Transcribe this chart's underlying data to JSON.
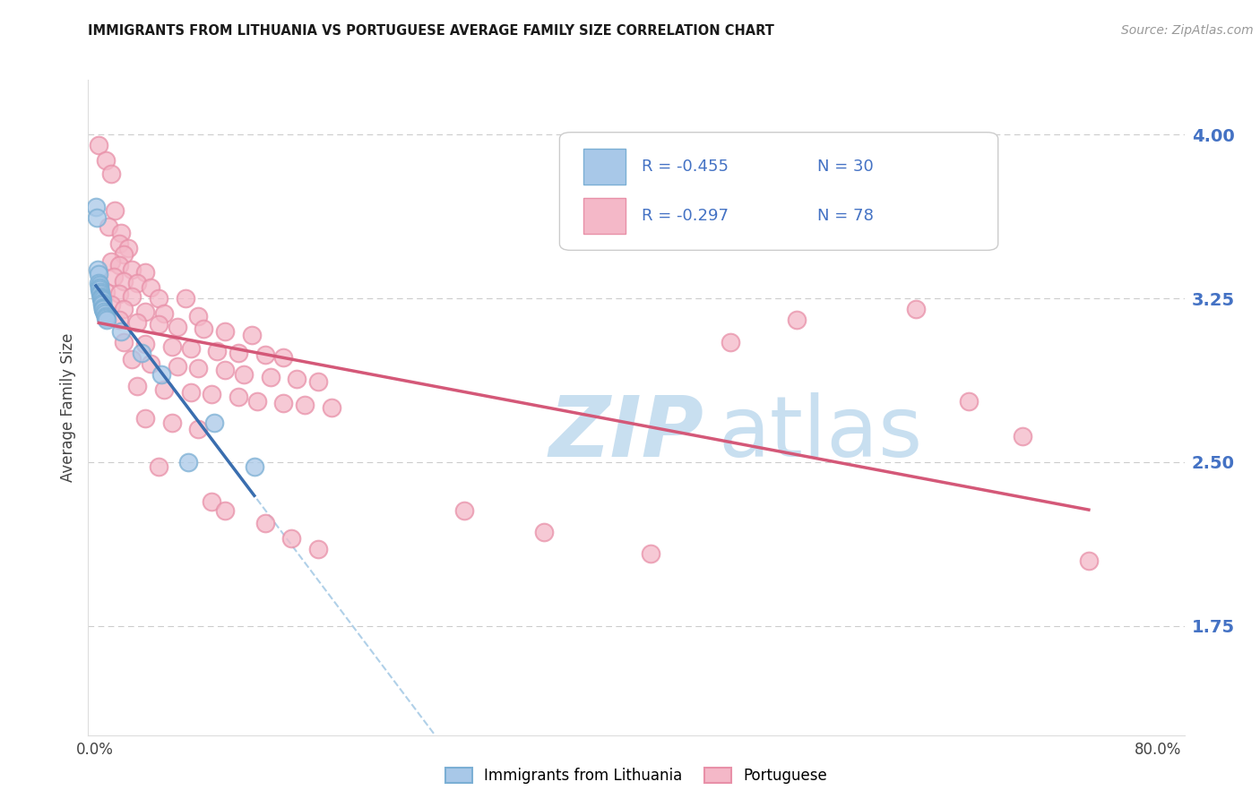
{
  "title": "IMMIGRANTS FROM LITHUANIA VS PORTUGUESE AVERAGE FAMILY SIZE CORRELATION CHART",
  "source": "Source: ZipAtlas.com",
  "ylabel": "Average Family Size",
  "right_yticks": [
    4.0,
    3.25,
    2.5,
    1.75
  ],
  "ymin": 1.25,
  "ymax": 4.25,
  "xmin": -0.005,
  "xmax": 0.82,
  "legend_r1": "R = -0.455",
  "legend_n1": "N = 30",
  "legend_r2": "R = -0.297",
  "legend_n2": "N = 78",
  "blue_scatter_color": "#a8c8e8",
  "blue_edge_color": "#7bafd4",
  "pink_scatter_color": "#f4b8c8",
  "pink_edge_color": "#e890a8",
  "blue_line_color": "#3a6eaf",
  "pink_line_color": "#d45878",
  "dashed_line_color": "#b0d0e8",
  "title_color": "#1a1a1a",
  "right_axis_color": "#4472c4",
  "watermark_zip_color": "#c8dff0",
  "watermark_atlas_color": "#c8dff0",
  "lithuania_points": [
    [
      0.0008,
      3.67
    ],
    [
      0.0015,
      3.62
    ],
    [
      0.002,
      3.38
    ],
    [
      0.0025,
      3.36
    ],
    [
      0.003,
      3.32
    ],
    [
      0.0032,
      3.31
    ],
    [
      0.0035,
      3.3
    ],
    [
      0.0038,
      3.29
    ],
    [
      0.004,
      3.28
    ],
    [
      0.0042,
      3.27
    ],
    [
      0.0045,
      3.26
    ],
    [
      0.0048,
      3.25
    ],
    [
      0.005,
      3.25
    ],
    [
      0.0052,
      3.24
    ],
    [
      0.0055,
      3.23
    ],
    [
      0.0058,
      3.22
    ],
    [
      0.006,
      3.21
    ],
    [
      0.0062,
      3.2
    ],
    [
      0.0065,
      3.2
    ],
    [
      0.007,
      3.19
    ],
    [
      0.0075,
      3.18
    ],
    [
      0.008,
      3.17
    ],
    [
      0.0085,
      3.16
    ],
    [
      0.009,
      3.15
    ],
    [
      0.02,
      3.1
    ],
    [
      0.035,
      3.0
    ],
    [
      0.05,
      2.9
    ],
    [
      0.07,
      2.5
    ],
    [
      0.09,
      2.68
    ],
    [
      0.12,
      2.48
    ]
  ],
  "portuguese_points": [
    [
      0.003,
      3.95
    ],
    [
      0.008,
      3.88
    ],
    [
      0.012,
      3.82
    ],
    [
      0.015,
      3.65
    ],
    [
      0.01,
      3.58
    ],
    [
      0.02,
      3.55
    ],
    [
      0.018,
      3.5
    ],
    [
      0.025,
      3.48
    ],
    [
      0.022,
      3.45
    ],
    [
      0.012,
      3.42
    ],
    [
      0.018,
      3.4
    ],
    [
      0.028,
      3.38
    ],
    [
      0.038,
      3.37
    ],
    [
      0.014,
      3.35
    ],
    [
      0.022,
      3.33
    ],
    [
      0.032,
      3.32
    ],
    [
      0.042,
      3.3
    ],
    [
      0.008,
      3.28
    ],
    [
      0.018,
      3.27
    ],
    [
      0.028,
      3.26
    ],
    [
      0.048,
      3.25
    ],
    [
      0.068,
      3.25
    ],
    [
      0.012,
      3.22
    ],
    [
      0.022,
      3.2
    ],
    [
      0.038,
      3.19
    ],
    [
      0.052,
      3.18
    ],
    [
      0.078,
      3.17
    ],
    [
      0.018,
      3.15
    ],
    [
      0.032,
      3.14
    ],
    [
      0.048,
      3.13
    ],
    [
      0.062,
      3.12
    ],
    [
      0.082,
      3.11
    ],
    [
      0.098,
      3.1
    ],
    [
      0.118,
      3.08
    ],
    [
      0.022,
      3.05
    ],
    [
      0.038,
      3.04
    ],
    [
      0.058,
      3.03
    ],
    [
      0.072,
      3.02
    ],
    [
      0.092,
      3.01
    ],
    [
      0.108,
      3.0
    ],
    [
      0.128,
      2.99
    ],
    [
      0.142,
      2.98
    ],
    [
      0.028,
      2.97
    ],
    [
      0.042,
      2.95
    ],
    [
      0.062,
      2.94
    ],
    [
      0.078,
      2.93
    ],
    [
      0.098,
      2.92
    ],
    [
      0.112,
      2.9
    ],
    [
      0.132,
      2.89
    ],
    [
      0.152,
      2.88
    ],
    [
      0.168,
      2.87
    ],
    [
      0.032,
      2.85
    ],
    [
      0.052,
      2.83
    ],
    [
      0.072,
      2.82
    ],
    [
      0.088,
      2.81
    ],
    [
      0.108,
      2.8
    ],
    [
      0.122,
      2.78
    ],
    [
      0.142,
      2.77
    ],
    [
      0.158,
      2.76
    ],
    [
      0.178,
      2.75
    ],
    [
      0.038,
      2.7
    ],
    [
      0.058,
      2.68
    ],
    [
      0.078,
      2.65
    ],
    [
      0.048,
      2.48
    ],
    [
      0.088,
      2.32
    ],
    [
      0.098,
      2.28
    ],
    [
      0.128,
      2.22
    ],
    [
      0.148,
      2.15
    ],
    [
      0.168,
      2.1
    ],
    [
      0.278,
      2.28
    ],
    [
      0.338,
      2.18
    ],
    [
      0.418,
      2.08
    ],
    [
      0.478,
      3.05
    ],
    [
      0.528,
      3.15
    ],
    [
      0.618,
      3.2
    ],
    [
      0.658,
      2.78
    ],
    [
      0.698,
      2.62
    ],
    [
      0.748,
      2.05
    ]
  ]
}
